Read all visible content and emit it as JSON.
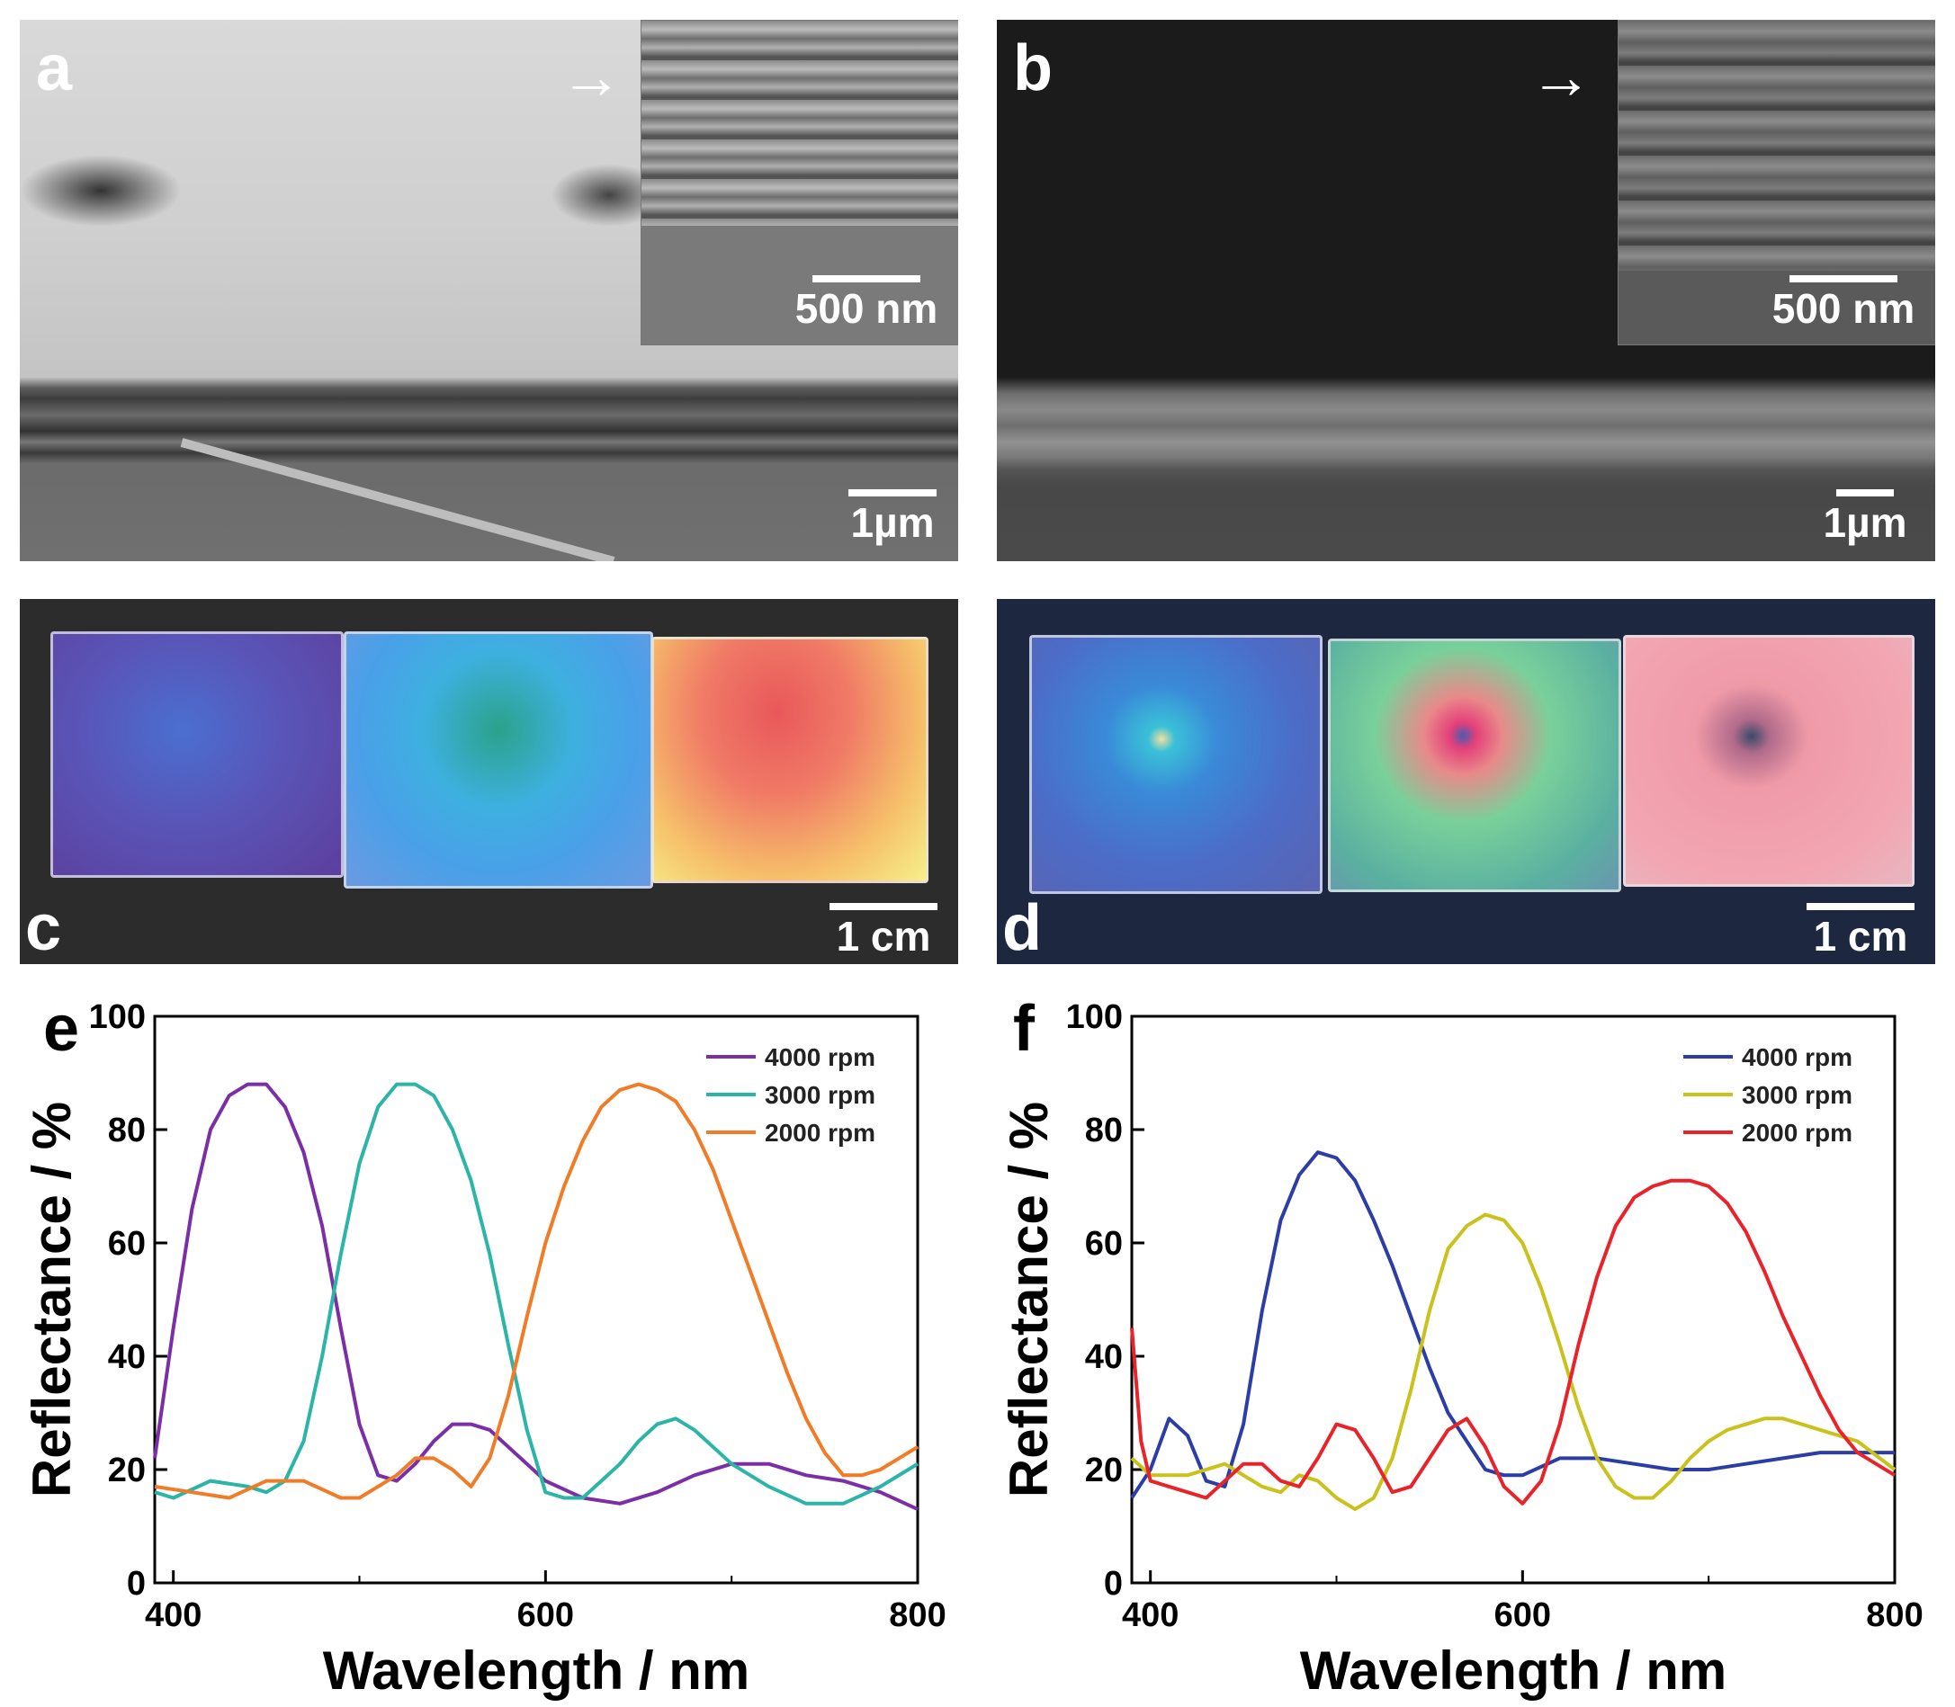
{
  "panels": {
    "a": {
      "letter": "a",
      "inset_scale": "500 nm",
      "main_scale": "1µm"
    },
    "b": {
      "letter": "b",
      "inset_scale": "500 nm",
      "main_scale": "1µm"
    },
    "c": {
      "letter": "c",
      "scale": "1 cm"
    },
    "d": {
      "letter": "d",
      "scale": "1 cm"
    },
    "e": {
      "letter": "e"
    },
    "f": {
      "letter": "f"
    }
  },
  "colors": {
    "e_4000": "#7b2fa6",
    "e_3000": "#2bb5a6",
    "e_2000": "#f07c28",
    "f_4000": "#2c3ea6",
    "f_3000": "#c9c21c",
    "f_2000": "#e8232a"
  },
  "chart_data": [
    {
      "panel": "e",
      "type": "line",
      "title": "",
      "xlabel": "Wavelength / nm",
      "ylabel": "Reflectance / %",
      "xlim": [
        390,
        800
      ],
      "ylim": [
        0,
        100
      ],
      "xticks": [
        400,
        600,
        800
      ],
      "yticks": [
        0,
        20,
        40,
        60,
        80,
        100
      ],
      "legend_position": "top-right",
      "series": [
        {
          "name": "4000 rpm",
          "x": [
            390,
            400,
            410,
            420,
            430,
            440,
            450,
            460,
            470,
            480,
            490,
            500,
            510,
            520,
            530,
            540,
            550,
            560,
            570,
            580,
            600,
            620,
            640,
            660,
            680,
            700,
            720,
            740,
            760,
            780,
            800
          ],
          "y": [
            22,
            45,
            66,
            80,
            86,
            88,
            88,
            84,
            76,
            63,
            45,
            28,
            19,
            18,
            21,
            25,
            28,
            28,
            27,
            24,
            18,
            15,
            14,
            16,
            19,
            21,
            21,
            19,
            18,
            16,
            13
          ]
        },
        {
          "name": "3000 rpm",
          "x": [
            390,
            400,
            420,
            440,
            450,
            460,
            470,
            480,
            490,
            500,
            510,
            520,
            530,
            540,
            550,
            560,
            570,
            580,
            590,
            600,
            610,
            620,
            630,
            640,
            650,
            660,
            670,
            680,
            700,
            720,
            740,
            760,
            780,
            800
          ],
          "y": [
            16,
            15,
            18,
            17,
            16,
            18,
            25,
            40,
            58,
            74,
            84,
            88,
            88,
            86,
            80,
            71,
            58,
            42,
            27,
            16,
            15,
            15,
            18,
            21,
            25,
            28,
            29,
            27,
            21,
            17,
            14,
            14,
            17,
            21
          ]
        },
        {
          "name": "2000 rpm",
          "x": [
            390,
            410,
            430,
            450,
            470,
            490,
            500,
            520,
            530,
            540,
            550,
            560,
            570,
            580,
            590,
            600,
            610,
            620,
            630,
            640,
            650,
            660,
            670,
            680,
            690,
            700,
            710,
            720,
            730,
            740,
            750,
            760,
            770,
            780,
            790,
            800
          ],
          "y": [
            17,
            16,
            15,
            18,
            18,
            15,
            15,
            19,
            22,
            22,
            20,
            17,
            22,
            33,
            47,
            60,
            70,
            78,
            84,
            87,
            88,
            87,
            85,
            80,
            73,
            64,
            55,
            46,
            37,
            29,
            23,
            19,
            19,
            20,
            22,
            24
          ]
        }
      ]
    },
    {
      "panel": "f",
      "type": "line",
      "title": "",
      "xlabel": "Wavelength / nm",
      "ylabel": "Reflectance / %",
      "xlim": [
        390,
        800
      ],
      "ylim": [
        0,
        100
      ],
      "xticks": [
        400,
        600,
        800
      ],
      "yticks": [
        0,
        20,
        40,
        60,
        80,
        100
      ],
      "legend_position": "top-right",
      "series": [
        {
          "name": "4000 rpm",
          "x": [
            390,
            400,
            410,
            420,
            430,
            440,
            450,
            460,
            470,
            480,
            490,
            500,
            510,
            520,
            530,
            540,
            550,
            560,
            570,
            580,
            590,
            600,
            620,
            640,
            660,
            680,
            700,
            720,
            740,
            760,
            780,
            800
          ],
          "y": [
            15,
            20,
            29,
            26,
            18,
            17,
            28,
            48,
            64,
            72,
            76,
            75,
            71,
            64,
            56,
            47,
            38,
            30,
            25,
            20,
            19,
            19,
            22,
            22,
            21,
            20,
            20,
            21,
            22,
            23,
            23,
            23
          ]
        },
        {
          "name": "3000 rpm",
          "x": [
            390,
            400,
            420,
            440,
            460,
            470,
            480,
            490,
            500,
            510,
            520,
            530,
            540,
            550,
            560,
            570,
            580,
            590,
            600,
            610,
            620,
            630,
            640,
            650,
            660,
            670,
            680,
            690,
            700,
            710,
            720,
            730,
            740,
            750,
            760,
            780,
            800
          ],
          "y": [
            22,
            19,
            19,
            21,
            17,
            16,
            19,
            18,
            15,
            13,
            15,
            22,
            34,
            48,
            59,
            63,
            65,
            64,
            60,
            52,
            42,
            31,
            22,
            17,
            15,
            15,
            18,
            22,
            25,
            27,
            28,
            29,
            29,
            28,
            27,
            25,
            20
          ]
        },
        {
          "name": "2000 rpm",
          "x": [
            390,
            395,
            400,
            410,
            420,
            430,
            440,
            450,
            460,
            470,
            480,
            490,
            500,
            510,
            520,
            530,
            540,
            550,
            560,
            570,
            580,
            590,
            600,
            610,
            620,
            630,
            640,
            650,
            660,
            670,
            680,
            690,
            700,
            710,
            720,
            730,
            740,
            750,
            760,
            770,
            780,
            790,
            800
          ],
          "y": [
            45,
            25,
            18,
            17,
            16,
            15,
            18,
            21,
            21,
            18,
            17,
            22,
            28,
            27,
            22,
            16,
            17,
            22,
            27,
            29,
            24,
            17,
            14,
            18,
            28,
            42,
            54,
            63,
            68,
            70,
            71,
            71,
            70,
            67,
            62,
            55,
            47,
            40,
            33,
            27,
            23,
            21,
            19
          ]
        }
      ]
    }
  ]
}
